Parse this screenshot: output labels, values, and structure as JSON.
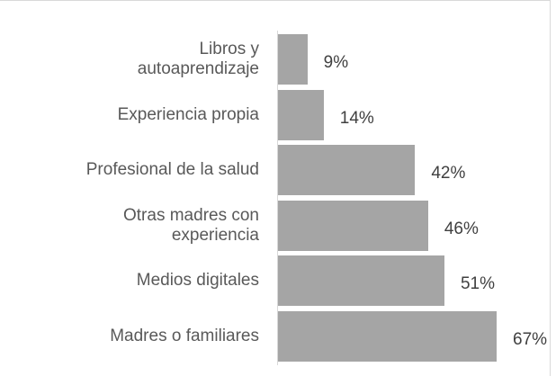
{
  "chart_data": {
    "type": "bar",
    "orientation": "horizontal",
    "categories": [
      "Libros y\nautoaprendizaje",
      "Experiencia propia",
      "Profesional de la salud",
      "Otras madres con\nexperiencia",
      "Medios digitales",
      "Madres o familiares"
    ],
    "values": [
      9,
      14,
      42,
      46,
      51,
      67
    ],
    "value_labels": [
      "9%",
      "14%",
      "42%",
      "46%",
      "51%",
      "67%"
    ],
    "color": "#a5a5a5"
  }
}
